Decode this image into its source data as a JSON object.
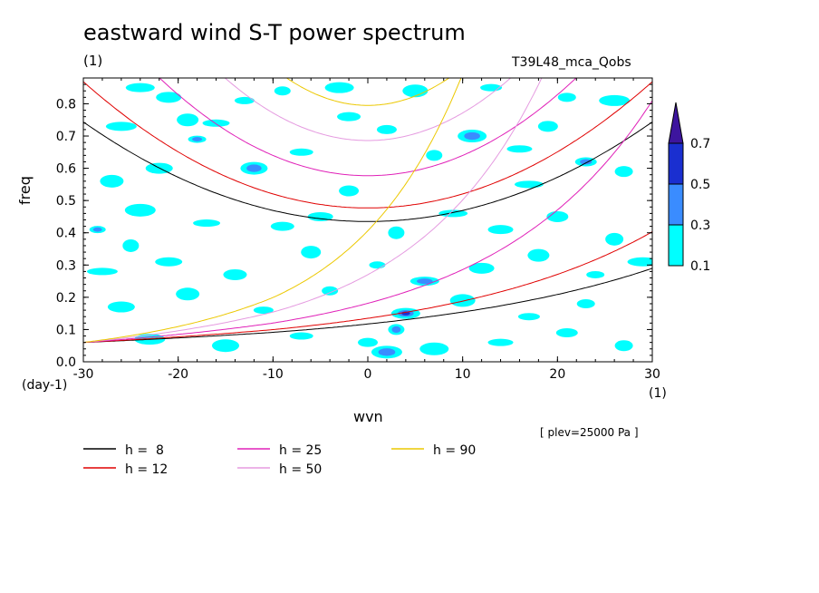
{
  "chart_data": {
    "type": "heatmap",
    "title": "eastward wind S-T power spectrum",
    "subtitle_left": "(1)",
    "subtitle_right": "T39L48_mca_Qobs",
    "xlabel": "wvn",
    "ylabel": "freq",
    "x_unit": "(1)",
    "y_unit": "(day-1)",
    "annotation": "[ plev=25000 Pa ]",
    "xlim": [
      -30,
      30
    ],
    "ylim": [
      0.0,
      0.88
    ],
    "x_ticks": [
      -30,
      -20,
      -10,
      0,
      10,
      20,
      30
    ],
    "x_tick_labels": [
      "-30",
      "-20",
      "-10",
      "0",
      "10",
      "20",
      "30"
    ],
    "y_ticks": [
      0.0,
      0.1,
      0.2,
      0.3,
      0.4,
      0.5,
      0.6,
      0.7,
      0.8
    ],
    "y_tick_labels": [
      "0.0",
      "0.1",
      "0.2",
      "0.3",
      "0.4",
      "0.5",
      "0.6",
      "0.7",
      "0.8"
    ],
    "colorbar": {
      "levels": [
        "0.1",
        "0.3",
        "0.5",
        "0.7"
      ],
      "colors": [
        "#00ffff",
        "#3a8cff",
        "#1a2fd0",
        "#3d159e"
      ]
    },
    "contour_blobs": [
      {
        "x": -28.5,
        "y": 0.41,
        "level": 2
      },
      {
        "x": -24,
        "y": 0.85,
        "level": 1
      },
      {
        "x": -21,
        "y": 0.82,
        "level": 1
      },
      {
        "x": -19,
        "y": 0.75,
        "level": 1
      },
      {
        "x": -18,
        "y": 0.69,
        "level": 2
      },
      {
        "x": -26,
        "y": 0.73,
        "level": 1
      },
      {
        "x": -22,
        "y": 0.6,
        "level": 1
      },
      {
        "x": -27,
        "y": 0.56,
        "level": 1
      },
      {
        "x": -13,
        "y": 0.81,
        "level": 1
      },
      {
        "x": -9,
        "y": 0.84,
        "level": 1
      },
      {
        "x": -3,
        "y": 0.85,
        "level": 1
      },
      {
        "x": 5,
        "y": 0.84,
        "level": 1
      },
      {
        "x": 13,
        "y": 0.85,
        "level": 1
      },
      {
        "x": 21,
        "y": 0.82,
        "level": 1
      },
      {
        "x": 26,
        "y": 0.81,
        "level": 1
      },
      {
        "x": -12,
        "y": 0.6,
        "level": 2
      },
      {
        "x": -7,
        "y": 0.65,
        "level": 1
      },
      {
        "x": 2,
        "y": 0.72,
        "level": 1
      },
      {
        "x": 7,
        "y": 0.64,
        "level": 1
      },
      {
        "x": 11,
        "y": 0.7,
        "level": 2
      },
      {
        "x": 16,
        "y": 0.66,
        "level": 1
      },
      {
        "x": 23,
        "y": 0.62,
        "level": 2
      },
      {
        "x": 27,
        "y": 0.59,
        "level": 1
      },
      {
        "x": -24,
        "y": 0.47,
        "level": 1
      },
      {
        "x": -17,
        "y": 0.43,
        "level": 1
      },
      {
        "x": -9,
        "y": 0.42,
        "level": 1
      },
      {
        "x": -2,
        "y": 0.53,
        "level": 1
      },
      {
        "x": 3,
        "y": 0.4,
        "level": 1
      },
      {
        "x": 9,
        "y": 0.46,
        "level": 1
      },
      {
        "x": 14,
        "y": 0.41,
        "level": 1
      },
      {
        "x": 20,
        "y": 0.45,
        "level": 1
      },
      {
        "x": 26,
        "y": 0.38,
        "level": 1
      },
      {
        "x": -28,
        "y": 0.28,
        "level": 1
      },
      {
        "x": -21,
        "y": 0.31,
        "level": 1
      },
      {
        "x": -14,
        "y": 0.27,
        "level": 1
      },
      {
        "x": -6,
        "y": 0.34,
        "level": 1
      },
      {
        "x": 1,
        "y": 0.3,
        "level": 1
      },
      {
        "x": 6,
        "y": 0.25,
        "level": 2
      },
      {
        "x": 12,
        "y": 0.29,
        "level": 1
      },
      {
        "x": 18,
        "y": 0.33,
        "level": 1
      },
      {
        "x": 24,
        "y": 0.27,
        "level": 1
      },
      {
        "x": 29,
        "y": 0.31,
        "level": 1
      },
      {
        "x": -26,
        "y": 0.17,
        "level": 1
      },
      {
        "x": -19,
        "y": 0.21,
        "level": 1
      },
      {
        "x": -11,
        "y": 0.16,
        "level": 1
      },
      {
        "x": -4,
        "y": 0.22,
        "level": 1
      },
      {
        "x": 4,
        "y": 0.15,
        "level": 3
      },
      {
        "x": 10,
        "y": 0.19,
        "level": 1
      },
      {
        "x": 17,
        "y": 0.14,
        "level": 1
      },
      {
        "x": 23,
        "y": 0.18,
        "level": 1
      },
      {
        "x": -23,
        "y": 0.07,
        "level": 1
      },
      {
        "x": -15,
        "y": 0.05,
        "level": 1
      },
      {
        "x": -7,
        "y": 0.08,
        "level": 1
      },
      {
        "x": 0,
        "y": 0.06,
        "level": 1
      },
      {
        "x": 3,
        "y": 0.1,
        "level": 2
      },
      {
        "x": 7,
        "y": 0.04,
        "level": 1
      },
      {
        "x": 14,
        "y": 0.06,
        "level": 1
      },
      {
        "x": 21,
        "y": 0.09,
        "level": 1
      },
      {
        "x": 27,
        "y": 0.05,
        "level": 1
      },
      {
        "x": 2,
        "y": 0.03,
        "level": 2
      },
      {
        "x": -16,
        "y": 0.74,
        "level": 1
      },
      {
        "x": -2,
        "y": 0.76,
        "level": 1
      },
      {
        "x": 19,
        "y": 0.73,
        "level": 1
      },
      {
        "x": -25,
        "y": 0.36,
        "level": 1
      },
      {
        "x": 17,
        "y": 0.55,
        "level": 1
      },
      {
        "x": -5,
        "y": 0.45,
        "level": 1
      }
    ],
    "series": [
      {
        "name": "h = 8",
        "color": "#000000",
        "kelvin_x_scale": 0.021,
        "wig_f0": 0.435,
        "wig_k2": 0.000343
      },
      {
        "name": "h = 12",
        "color": "#e00000",
        "kelvin_x_scale": 0.0254,
        "wig_f0": 0.477,
        "wig_k2": 0.000435
      },
      {
        "name": "h = 25",
        "color": "#e020b8",
        "kelvin_x_scale": 0.0347,
        "wig_f0": 0.577,
        "wig_k2": 0.000628
      },
      {
        "name": "h = 50",
        "color": "#e59be0",
        "kelvin_x_scale": 0.0472,
        "wig_f0": 0.686,
        "wig_k2": 0.000856
      },
      {
        "name": "h = 90",
        "color": "#ecc800",
        "kelvin_x_scale": 0.06,
        "wig_f0": 0.795,
        "wig_k2": 0.00116
      }
    ]
  },
  "legend": [
    {
      "label": "h =  8",
      "color": "#000000"
    },
    {
      "label": "h = 12",
      "color": "#e00000"
    },
    {
      "label": "h = 25",
      "color": "#e020b8"
    },
    {
      "label": "h = 50",
      "color": "#e59be0"
    },
    {
      "label": "h = 90",
      "color": "#ecc800"
    }
  ]
}
